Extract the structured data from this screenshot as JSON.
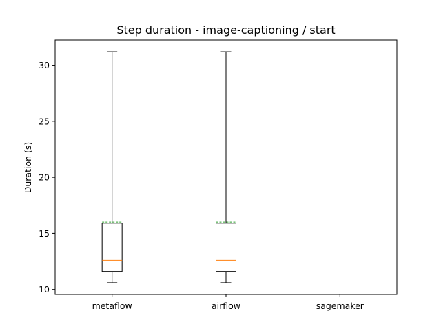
{
  "chart_data": {
    "type": "box",
    "title": "Step duration - image-captioning / start",
    "xlabel": "",
    "ylabel": "Duration (s)",
    "ylim": [
      9.55,
      32.25
    ],
    "yticks": [
      10,
      15,
      20,
      25,
      30
    ],
    "categories": [
      "metaflow",
      "airflow",
      "sagemaker"
    ],
    "boxes": [
      {
        "category": "metaflow",
        "whisker_low": 10.6,
        "q1": 11.6,
        "median": 12.6,
        "q3": 15.9,
        "whisker_high": 31.2,
        "mean": 16.0
      },
      {
        "category": "airflow",
        "whisker_low": 10.6,
        "q1": 11.6,
        "median": 12.6,
        "q3": 15.9,
        "whisker_high": 31.2,
        "mean": 16.0
      },
      {
        "category": "sagemaker",
        "whisker_low": null,
        "q1": null,
        "median": null,
        "q3": null,
        "whisker_high": null,
        "mean": null
      }
    ],
    "colors": {
      "box": "#000000",
      "median": "#ff7f0e",
      "mean": "#2ca02c"
    },
    "grid": false
  }
}
